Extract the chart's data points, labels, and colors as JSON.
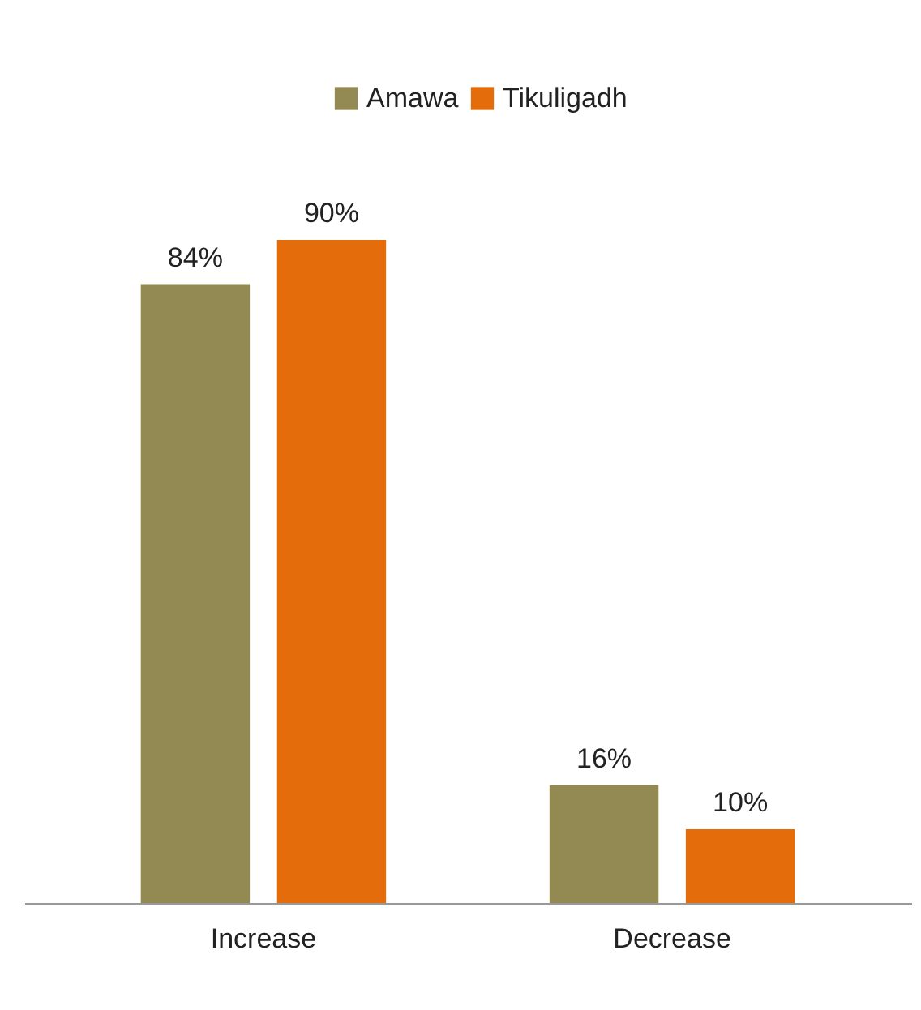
{
  "chart_data": {
    "type": "bar",
    "categories": [
      "Increase",
      "Decrease"
    ],
    "series": [
      {
        "name": "Amawa",
        "color": "#938953",
        "values": [
          84,
          16
        ],
        "value_labels": [
          "84%",
          "16%"
        ]
      },
      {
        "name": "Tikuligadh",
        "color": "#e46c0a",
        "values": [
          90,
          10
        ],
        "value_labels": [
          "90%",
          "10%"
        ]
      }
    ],
    "legend": "top"
  }
}
